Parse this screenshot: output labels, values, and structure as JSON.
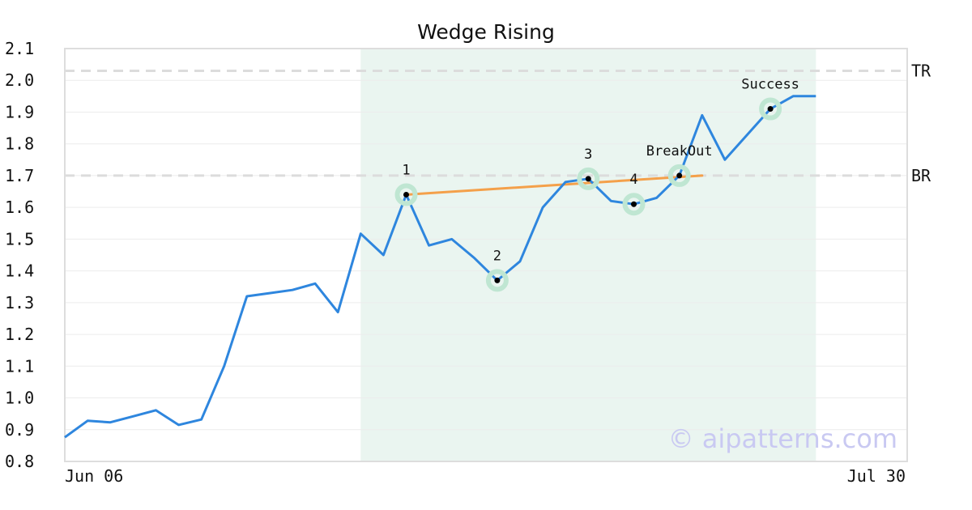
{
  "chart_data": {
    "type": "line",
    "title": "Wedge Rising",
    "xlabel": "",
    "ylabel": "",
    "ylim": [
      0.8,
      2.1
    ],
    "yticks": [
      "0.8",
      "0.9",
      "1.0",
      "1.1",
      "1.2",
      "1.3",
      "1.4",
      "1.5",
      "1.6",
      "1.7",
      "1.8",
      "1.9",
      "2.0",
      "2.1"
    ],
    "xtick_labels": [
      "Jun 06",
      "Jul 30"
    ],
    "grid": true,
    "series": [
      {
        "color": "#2e86de",
        "values": [
          0.876,
          0.928,
          0.923,
          0.942,
          0.961,
          0.915,
          0.932,
          1.1,
          1.32,
          1.33,
          1.34,
          1.36,
          1.27,
          1.517,
          1.45,
          1.64,
          1.48,
          1.5,
          1.44,
          1.37,
          1.43,
          1.6,
          1.68,
          1.69,
          1.62,
          1.61,
          1.63,
          1.7,
          1.89,
          1.75,
          1.83,
          1.91,
          1.95,
          1.95
        ]
      }
    ],
    "pattern_region": {
      "start_index": 13,
      "end_index": 33,
      "color": "#eaf5f0"
    },
    "trend_line": {
      "color": "#f4a04a",
      "from": {
        "index": 15,
        "value": 1.64
      },
      "to": {
        "index": 28,
        "value": 1.7
      }
    },
    "levels": [
      {
        "label": "TR",
        "value": 2.03
      },
      {
        "label": "BR",
        "value": 1.7
      }
    ],
    "annotations": [
      {
        "label": "1",
        "index": 15,
        "value": 1.64
      },
      {
        "label": "2",
        "index": 19,
        "value": 1.37
      },
      {
        "label": "3",
        "index": 23,
        "value": 1.69
      },
      {
        "label": "4",
        "index": 25,
        "value": 1.61
      },
      {
        "label": "BreakOut",
        "index": 27,
        "value": 1.7
      },
      {
        "label": "Success",
        "index": 31,
        "value": 1.91
      }
    ],
    "watermark": "© aipatterns.com"
  }
}
